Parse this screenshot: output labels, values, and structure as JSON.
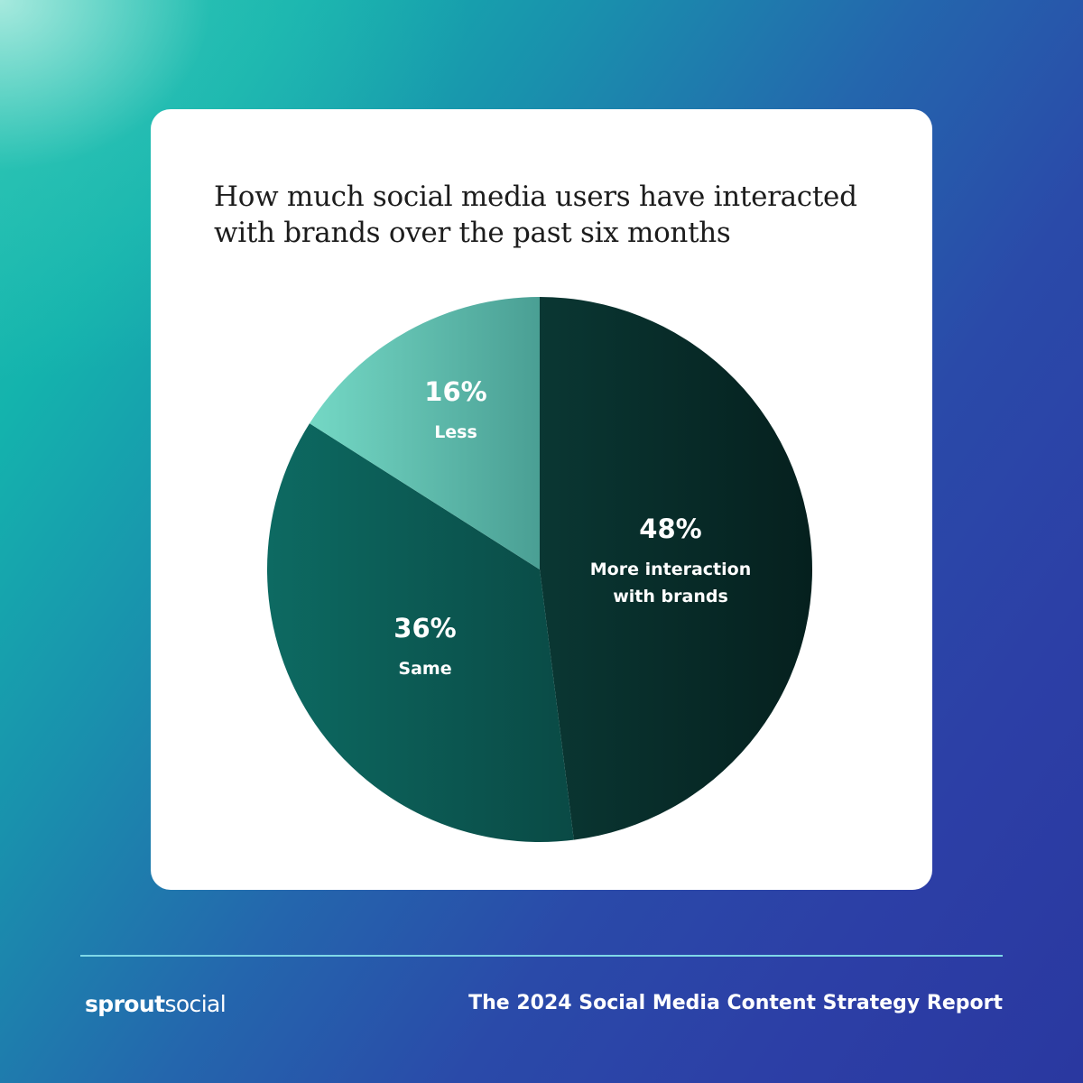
{
  "chart_data": {
    "type": "pie",
    "title_lines": [
      "How much social media users have interacted",
      "with brands over the past six months"
    ],
    "slices": [
      {
        "label_lines": [
          "More interaction",
          "with brands"
        ],
        "value": 48,
        "value_label": "48%",
        "color_start": "#0a3733",
        "color_end": "#05201e"
      },
      {
        "label_lines": [
          "Same"
        ],
        "value": 36,
        "value_label": "36%",
        "color_start": "#0d6a62",
        "color_end": "#0a4a45"
      },
      {
        "label_lines": [
          "Less"
        ],
        "value": 16,
        "value_label": "16%",
        "color_start": "#74d8c5",
        "color_end": "#4a9f94"
      }
    ],
    "start_angle_deg": 0,
    "direction": "clockwise"
  },
  "footer": {
    "logo_bold": "sprout",
    "logo_light": "social",
    "report_title": "The 2024 Social Media Content Strategy Report"
  },
  "colors": {
    "divider": "#7fd8e8",
    "card": "#ffffff"
  }
}
